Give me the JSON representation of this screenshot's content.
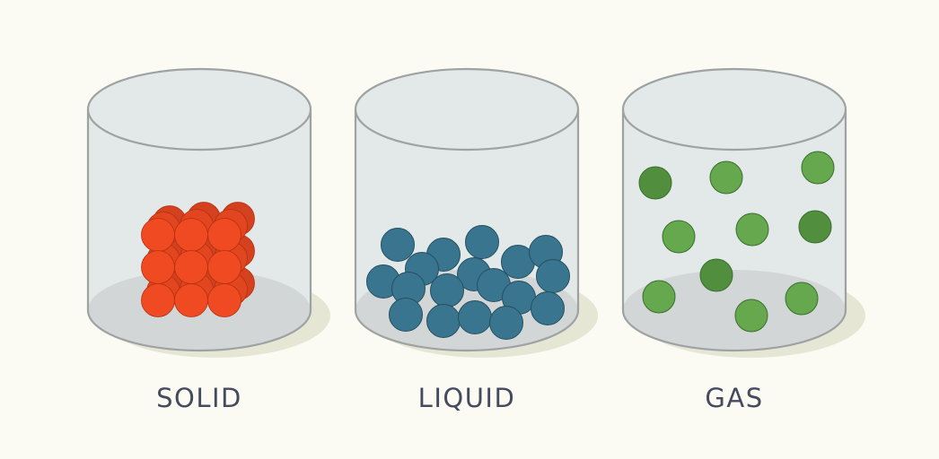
{
  "colors": {
    "background": "#fbfbf4",
    "jar_outline": "#9ea2a2",
    "jar_fill": "#e3e8e8",
    "jar_bottom": "#d2d6d6",
    "shadow": "#e6e6d4",
    "label_text": "#454a5e"
  },
  "states": [
    {
      "label": "SOLID",
      "particle_color": "#f04a22",
      "particle_stroke": "#b5300f",
      "arrangement": "packed lattice"
    },
    {
      "label": "LIQUID",
      "particle_color": "#3a7590",
      "particle_stroke": "#24505f",
      "arrangement": "loose cluster"
    },
    {
      "label": "GAS",
      "particle_color": "#65a84e",
      "particle_color_dark": "#518f3f",
      "particle_stroke": "#3c6e2e",
      "arrangement": "spread out"
    }
  ]
}
